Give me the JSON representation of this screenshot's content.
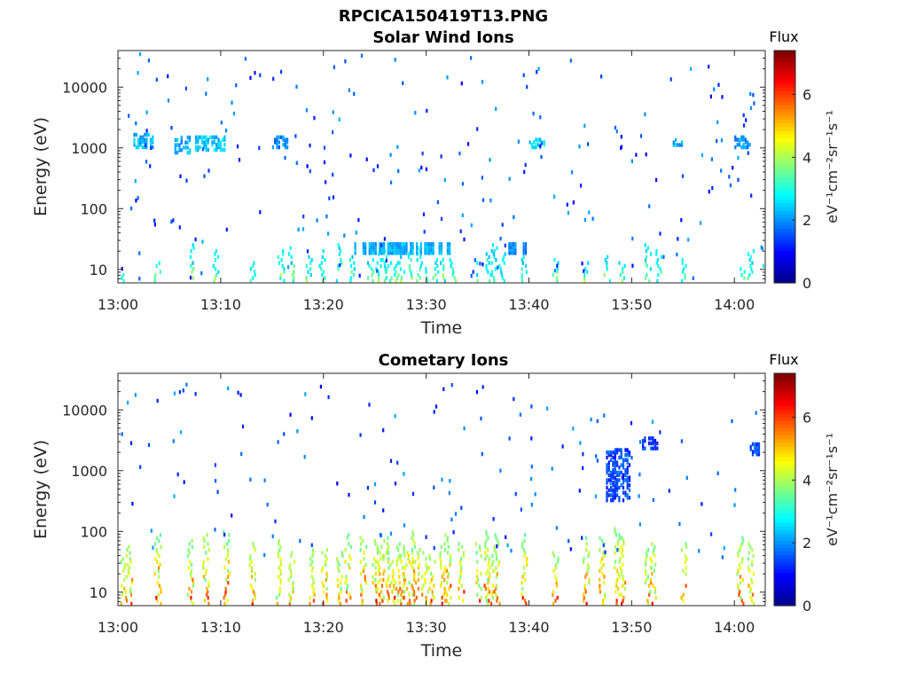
{
  "figure": {
    "title": "RPCICA150419T13.PNG"
  },
  "colormap": {
    "name": "jet",
    "stops": [
      "#00008f",
      "#0000ff",
      "#0080ff",
      "#00ffff",
      "#80ff80",
      "#ffff00",
      "#ff8000",
      "#ff0000",
      "#800000"
    ]
  },
  "chart_data": [
    {
      "type": "heatmap",
      "title": "Solar Wind Ions",
      "xlabel": "Time",
      "ylabel": "Energy (eV)",
      "x_ticks": [
        "13:00",
        "13:10",
        "13:20",
        "13:30",
        "13:40",
        "13:50",
        "14:00"
      ],
      "x_tick_values_min": [
        0,
        10,
        20,
        30,
        40,
        50,
        60
      ],
      "xlim_min": [
        0,
        63
      ],
      "y_scale": "log",
      "y_ticks": [
        "10",
        "100",
        "1000",
        "10000"
      ],
      "y_tick_values": [
        10,
        100,
        1000,
        10000
      ],
      "ylim": [
        6,
        40000
      ],
      "colorbar": {
        "title": "Flux",
        "label": "eV⁻¹cm⁻²sr⁻¹s⁻¹",
        "ticks": [
          "0",
          "2",
          "4",
          "6"
        ],
        "tick_values": [
          0,
          2,
          4,
          6
        ],
        "range": [
          0,
          7.4
        ]
      },
      "columns_min": [
        0.5,
        3.8,
        7.0,
        9.5,
        13.0,
        15.8,
        16.8,
        18.5,
        19.8,
        21.5,
        22.8,
        24.5,
        25.3,
        25.8,
        26.3,
        27.0,
        27.5,
        28.5,
        29.3,
        30.0,
        30.8,
        31.5,
        32.5,
        35.0,
        36.0,
        36.5,
        37.3,
        39.5,
        42.5,
        45.5,
        47.5,
        49.0,
        51.5,
        52.5,
        55.0,
        60.8,
        61.5,
        63.0
      ],
      "bands": [
        {
          "t_min": 23.0,
          "t_max": 32.5,
          "e_low": 20,
          "e_high": 30,
          "flux": 2.2
        },
        {
          "t_min": 38.0,
          "t_max": 40.0,
          "e_low": 20,
          "e_high": 30,
          "flux": 1.9
        }
      ],
      "clusters": [
        {
          "t_min": 1.5,
          "t_max": 3.5,
          "e_low": 1100,
          "e_high": 1800,
          "flux": 2.2
        },
        {
          "t_min": 5.5,
          "t_max": 7.0,
          "e_low": 900,
          "e_high": 1600,
          "flux": 2.1
        },
        {
          "t_min": 7.5,
          "t_max": 10.5,
          "e_low": 1000,
          "e_high": 1700,
          "flux": 2.4
        },
        {
          "t_min": 15.0,
          "t_max": 16.5,
          "e_low": 1100,
          "e_high": 1700,
          "flux": 1.9
        },
        {
          "t_min": 40.0,
          "t_max": 41.5,
          "e_low": 1100,
          "e_high": 1600,
          "flux": 2.5
        },
        {
          "t_min": 54.0,
          "t_max": 55.0,
          "e_low": 1200,
          "e_high": 1600,
          "flux": 2.2
        },
        {
          "t_min": 60.0,
          "t_max": 61.5,
          "e_low": 1100,
          "e_high": 1700,
          "flux": 2.0
        }
      ],
      "scatter": {
        "count": 230,
        "e_low": 7,
        "e_high": 38000,
        "flux_min": 0.9,
        "flux_max": 2.2,
        "seed": 11
      }
    },
    {
      "type": "heatmap",
      "title": "Cometary Ions",
      "xlabel": "Time",
      "ylabel": "Energy (eV)",
      "x_ticks": [
        "13:00",
        "13:10",
        "13:20",
        "13:30",
        "13:40",
        "13:50",
        "14:00"
      ],
      "x_tick_values_min": [
        0,
        10,
        20,
        30,
        40,
        50,
        60
      ],
      "xlim_min": [
        0,
        63
      ],
      "y_scale": "log",
      "y_ticks": [
        "10",
        "100",
        "1000",
        "10000"
      ],
      "y_tick_values": [
        10,
        100,
        1000,
        10000
      ],
      "ylim": [
        6,
        40000
      ],
      "colorbar": {
        "title": "Flux",
        "label": "eV⁻¹cm⁻²sr⁻¹s⁻¹",
        "ticks": [
          "0",
          "2",
          "4",
          "6"
        ],
        "tick_values": [
          0,
          2,
          4,
          6
        ],
        "range": [
          0,
          7.4
        ]
      },
      "columns_min": [
        0.5,
        1.0,
        3.8,
        7.0,
        8.5,
        10.5,
        13.0,
        15.5,
        16.8,
        18.8,
        20.0,
        21.5,
        22.3,
        23.8,
        25.0,
        25.5,
        26.0,
        26.5,
        27.0,
        27.5,
        28.0,
        28.5,
        29.0,
        29.8,
        30.5,
        31.5,
        32.0,
        33.3,
        35.0,
        35.8,
        36.2,
        36.8,
        39.5,
        42.5,
        45.5,
        47.0,
        48.5,
        49.0,
        51.5,
        52.0,
        55.0,
        60.5,
        61.5
      ],
      "column_top": 120,
      "bands": [],
      "clusters": [
        {
          "t_min": 47.5,
          "t_max": 49.8,
          "e_low": 350,
          "e_high": 2500,
          "flux": 1.4
        },
        {
          "t_min": 51.0,
          "t_max": 52.5,
          "e_low": 2500,
          "e_high": 3800,
          "flux": 1.3
        },
        {
          "t_min": 61.5,
          "t_max": 62.5,
          "e_low": 2000,
          "e_high": 3000,
          "flux": 1.4
        }
      ],
      "scatter": {
        "count": 150,
        "e_low": 40,
        "e_high": 28000,
        "flux_min": 0.9,
        "flux_max": 2.2,
        "seed": 23
      }
    }
  ]
}
